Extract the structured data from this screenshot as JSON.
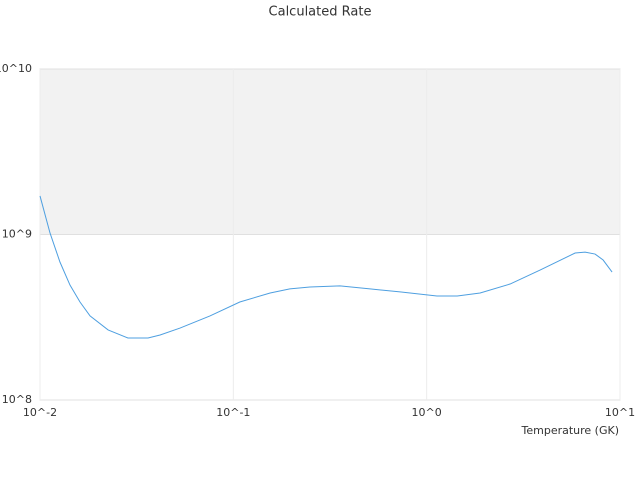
{
  "chart_data": {
    "type": "line",
    "title": "Calculated Rate",
    "x_label": "Temperature (GK)",
    "log_x": true,
    "log_y": true,
    "grid": true,
    "color": "#4e9fe0",
    "band": {
      "from": 1000000000,
      "to": 10000000000,
      "color": "#f2f2f2"
    },
    "xlim": [
      0.01,
      10
    ],
    "ylim": [
      100000000,
      10000000000
    ],
    "xticks": [
      {
        "value": 0.01,
        "label": "10^-2"
      },
      {
        "value": 0.1,
        "label": "10^-1"
      },
      {
        "value": 1,
        "label": "10^0"
      },
      {
        "value": 10,
        "label": "10^1"
      }
    ],
    "yticks": [
      {
        "value": 100000000,
        "label": "10^8"
      },
      {
        "value": 1000000000,
        "label": "10^9"
      },
      {
        "value": 10000000000,
        "label": "10^10"
      }
    ],
    "x": [
      0.01,
      0.01127,
      0.01268,
      0.01429,
      0.0161,
      0.01815,
      0.0225,
      0.0285,
      0.0362,
      0.0418,
      0.053,
      0.0757,
      0.108,
      0.155,
      0.196,
      0.249,
      0.356,
      0.509,
      0.728,
      1.13,
      1.44,
      1.89,
      2.7,
      3.86,
      5.86,
      6.6,
      7.43,
      8.18,
      9.1
    ],
    "values": [
      1710000000,
      1020000000,
      682000000,
      495000000,
      391000000,
      322000000,
      265000000,
      237000000,
      237000000,
      247000000,
      272000000,
      322000000,
      391000000,
      443000000,
      469000000,
      482000000,
      489000000,
      469000000,
      450000000,
      425000000,
      425000000,
      443000000,
      502000000,
      610000000,
      773000000,
      783000000,
      762000000,
      701000000,
      593000000
    ]
  }
}
